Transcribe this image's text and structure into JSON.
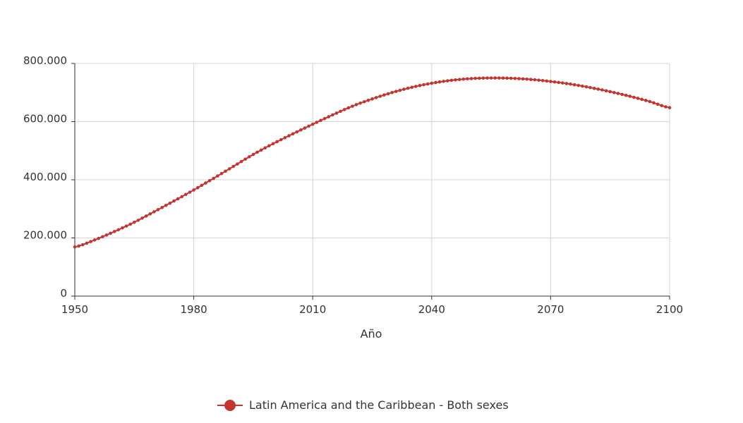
{
  "chart_data": {
    "type": "line",
    "title": "",
    "xlabel": "Año",
    "ylabel": "",
    "xlim": [
      1950,
      2100
    ],
    "ylim": [
      0,
      800000
    ],
    "x_ticks": [
      1950,
      1980,
      2010,
      2040,
      2070,
      2100
    ],
    "y_ticks": [
      0,
      200000,
      400000,
      600000,
      800000
    ],
    "x_tick_labels": [
      "1950",
      "1980",
      "2010",
      "2040",
      "2070",
      "2100"
    ],
    "y_tick_labels": [
      "0",
      "200.000",
      "400.000",
      "600.000",
      "800.000"
    ],
    "grid": true,
    "legend_position": "bottom-center",
    "series": [
      {
        "name": "Latin America and the Caribbean - Both sexes",
        "color": "#c23531",
        "x": [
          1950,
          1955,
          1960,
          1965,
          1970,
          1975,
          1980,
          1985,
          1990,
          1995,
          2000,
          2005,
          2010,
          2015,
          2020,
          2025,
          2030,
          2035,
          2040,
          2045,
          2050,
          2055,
          2060,
          2065,
          2070,
          2075,
          2080,
          2085,
          2090,
          2095,
          2100
        ],
        "values": [
          169000,
          193000,
          222000,
          254000,
          290000,
          327000,
          365000,
          405000,
          446000,
          487000,
          524000,
          558000,
          591000,
          623000,
          653000,
          678000,
          700000,
          718000,
          732000,
          742000,
          748000,
          750000,
          749000,
          745000,
          738000,
          729000,
          717000,
          703000,
          687000,
          669000,
          648000
        ]
      }
    ]
  }
}
